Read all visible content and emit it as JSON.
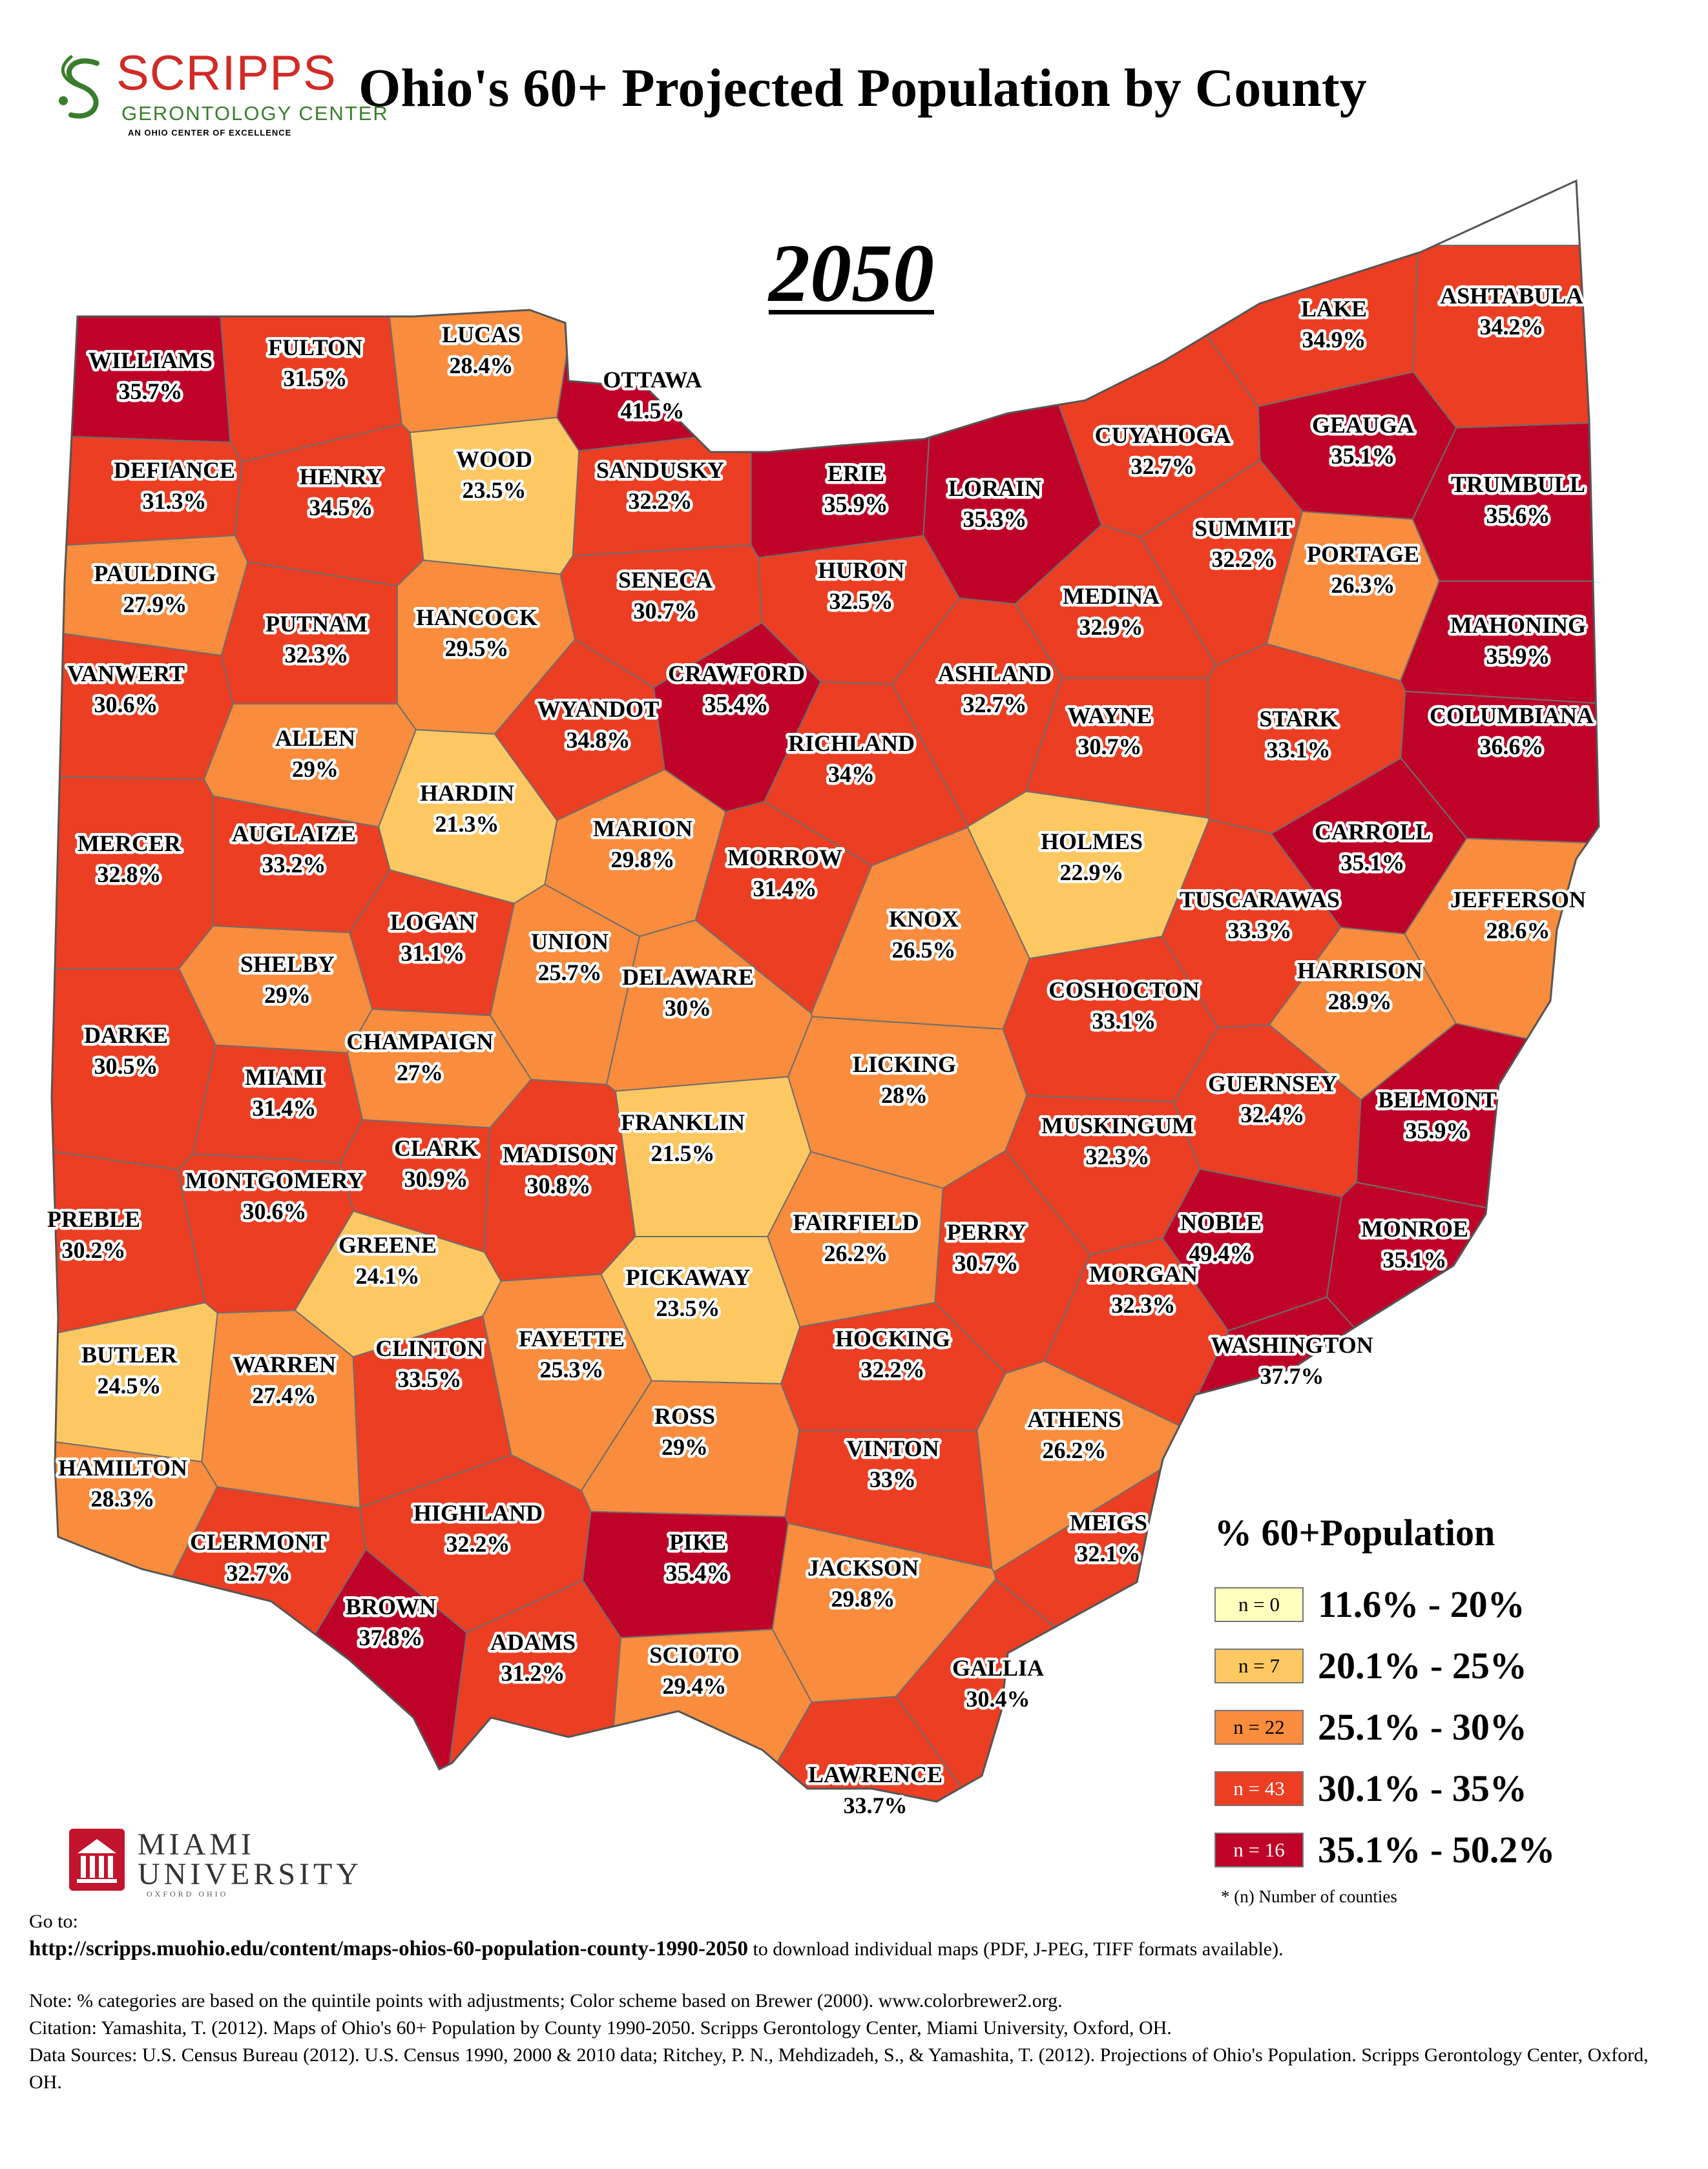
{
  "header": {
    "logo_name": "SCRIPPS",
    "logo_sub": "GERONTOLOGY CENTER",
    "logo_tag": "AN OHIO CENTER OF EXCELLENCE",
    "title": "Ohio's 60+ Projected Population by County",
    "year": "2050"
  },
  "legend": {
    "title": "% 60+Population",
    "items": [
      {
        "count": "n = 0",
        "range": "11.6% - 20%",
        "color": "#ffffbe"
      },
      {
        "count": "n = 7",
        "range": "20.1% - 25%",
        "color": "#fdc862"
      },
      {
        "count": "n = 22",
        "range": "25.1% - 30%",
        "color": "#f98c3d"
      },
      {
        "count": "n = 43",
        "range": "30.1% - 35%",
        "color": "#ec3e23"
      },
      {
        "count": "n = 16",
        "range": "35.1% - 50.2%",
        "color": "#bf0328"
      }
    ],
    "note": "* (n) Number of counties"
  },
  "miami": {
    "name": "MIAMI\nUNIVERSITY",
    "sub": "OXFORD OHIO"
  },
  "footer": {
    "goto": "Go to:",
    "url": "http://scripps.muohio.edu/content/maps-ohios-60-population-county-1990-2050",
    "url_suffix": " to download individual maps (PDF, J-PEG, TIFF formats available).",
    "note": "Note: % categories are based on the quintile points with adjustments; Color scheme based on Brewer (2000). www.colorbrewer2.org.",
    "citation": "Citation: Yamashita, T. (2012). Maps of Ohio's 60+ Population by County 1990-2050. Scripps Gerontology Center, Miami University, Oxford, OH.",
    "sources": "Data Sources: U.S. Census Bureau (2012). U.S. Census 1990, 2000 & 2010 data; Ritchey, P. N., Mehdizadeh, S., & Yamashita, T. (2012). Projections of Ohio's Population. Scripps Gerontology Center, Oxford, OH."
  },
  "counties": [
    {
      "name": "WILLIAMS",
      "value": "35.7%",
      "pct": 35.7
    },
    {
      "name": "FULTON",
      "value": "31.5%",
      "pct": 31.5
    },
    {
      "name": "LUCAS",
      "value": "28.4%",
      "pct": 28.4
    },
    {
      "name": "OTTAWA",
      "value": "41.5%",
      "pct": 41.5
    },
    {
      "name": "WOOD",
      "value": "23.5%",
      "pct": 23.5
    },
    {
      "name": "DEFIANCE",
      "value": "31.3%",
      "pct": 31.3
    },
    {
      "name": "HENRY",
      "value": "34.5%",
      "pct": 34.5
    },
    {
      "name": "SANDUSKY",
      "value": "32.2%",
      "pct": 32.2
    },
    {
      "name": "ERIE",
      "value": "35.9%",
      "pct": 35.9
    },
    {
      "name": "LORAIN",
      "value": "35.3%",
      "pct": 35.3
    },
    {
      "name": "CUYAHOGA",
      "value": "32.7%",
      "pct": 32.7
    },
    {
      "name": "LAKE",
      "value": "34.9%",
      "pct": 34.9
    },
    {
      "name": "GEAUGA",
      "value": "35.1%",
      "pct": 35.1
    },
    {
      "name": "ASHTABULA",
      "value": "34.2%",
      "pct": 34.2
    },
    {
      "name": "TRUMBULL",
      "value": "35.6%",
      "pct": 35.6
    },
    {
      "name": "PAULDING",
      "value": "27.9%",
      "pct": 27.9
    },
    {
      "name": "PUTNAM",
      "value": "32.3%",
      "pct": 32.3
    },
    {
      "name": "HANCOCK",
      "value": "29.5%",
      "pct": 29.5
    },
    {
      "name": "SENECA",
      "value": "30.7%",
      "pct": 30.7
    },
    {
      "name": "HURON",
      "value": "32.5%",
      "pct": 32.5
    },
    {
      "name": "MEDINA",
      "value": "32.9%",
      "pct": 32.9
    },
    {
      "name": "SUMMIT",
      "value": "32.2%",
      "pct": 32.2
    },
    {
      "name": "PORTAGE",
      "value": "26.3%",
      "pct": 26.3
    },
    {
      "name": "MAHONING",
      "value": "35.9%",
      "pct": 35.9
    },
    {
      "name": "VANWERT",
      "value": "30.6%",
      "pct": 30.6
    },
    {
      "name": "ALLEN",
      "value": "29%",
      "pct": 29
    },
    {
      "name": "HARDIN",
      "value": "21.3%",
      "pct": 21.3
    },
    {
      "name": "WYANDOT",
      "value": "34.8%",
      "pct": 34.8
    },
    {
      "name": "CRAWFORD",
      "value": "35.4%",
      "pct": 35.4
    },
    {
      "name": "RICHLAND",
      "value": "34%",
      "pct": 34
    },
    {
      "name": "ASHLAND",
      "value": "32.7%",
      "pct": 32.7
    },
    {
      "name": "WAYNE",
      "value": "30.7%",
      "pct": 30.7
    },
    {
      "name": "STARK",
      "value": "33.1%",
      "pct": 33.1
    },
    {
      "name": "COLUMBIANA",
      "value": "36.6%",
      "pct": 36.6
    },
    {
      "name": "MERCER",
      "value": "32.8%",
      "pct": 32.8
    },
    {
      "name": "AUGLAIZE",
      "value": "33.2%",
      "pct": 33.2
    },
    {
      "name": "MARION",
      "value": "29.8%",
      "pct": 29.8
    },
    {
      "name": "MORROW",
      "value": "31.4%",
      "pct": 31.4
    },
    {
      "name": "HOLMES",
      "value": "22.9%",
      "pct": 22.9
    },
    {
      "name": "CARROLL",
      "value": "35.1%",
      "pct": 35.1
    },
    {
      "name": "TUSCARAWAS",
      "value": "33.3%",
      "pct": 33.3
    },
    {
      "name": "JEFFERSON",
      "value": "28.6%",
      "pct": 28.6
    },
    {
      "name": "SHELBY",
      "value": "29%",
      "pct": 29
    },
    {
      "name": "LOGAN",
      "value": "31.1%",
      "pct": 31.1
    },
    {
      "name": "UNION",
      "value": "25.7%",
      "pct": 25.7
    },
    {
      "name": "DELAWARE",
      "value": "30%",
      "pct": 30
    },
    {
      "name": "KNOX",
      "value": "26.5%",
      "pct": 26.5
    },
    {
      "name": "COSHOCTON",
      "value": "33.1%",
      "pct": 33.1
    },
    {
      "name": "HARRISON",
      "value": "28.9%",
      "pct": 28.9
    },
    {
      "name": "DARKE",
      "value": "30.5%",
      "pct": 30.5
    },
    {
      "name": "MIAMI",
      "value": "31.4%",
      "pct": 31.4
    },
    {
      "name": "CHAMPAIGN",
      "value": "27%",
      "pct": 27
    },
    {
      "name": "LICKING",
      "value": "28%",
      "pct": 28
    },
    {
      "name": "GUERNSEY",
      "value": "32.4%",
      "pct": 32.4
    },
    {
      "name": "BELMONT",
      "value": "35.9%",
      "pct": 35.9
    },
    {
      "name": "CLARK",
      "value": "30.9%",
      "pct": 30.9
    },
    {
      "name": "MADISON",
      "value": "30.8%",
      "pct": 30.8
    },
    {
      "name": "FRANKLIN",
      "value": "21.5%",
      "pct": 21.5
    },
    {
      "name": "MUSKINGUM",
      "value": "32.3%",
      "pct": 32.3
    },
    {
      "name": "MONTGOMERY",
      "value": "30.6%",
      "pct": 30.6
    },
    {
      "name": "PREBLE",
      "value": "30.2%",
      "pct": 30.2
    },
    {
      "name": "GREENE",
      "value": "24.1%",
      "pct": 24.1
    },
    {
      "name": "FAIRFIELD",
      "value": "26.2%",
      "pct": 26.2
    },
    {
      "name": "PERRY",
      "value": "30.7%",
      "pct": 30.7
    },
    {
      "name": "NOBLE",
      "value": "49.4%",
      "pct": 49.4
    },
    {
      "name": "MONROE",
      "value": "35.1%",
      "pct": 35.1
    },
    {
      "name": "PICKAWAY",
      "value": "23.5%",
      "pct": 23.5
    },
    {
      "name": "MORGAN",
      "value": "32.3%",
      "pct": 32.3
    },
    {
      "name": "BUTLER",
      "value": "24.5%",
      "pct": 24.5
    },
    {
      "name": "WARREN",
      "value": "27.4%",
      "pct": 27.4
    },
    {
      "name": "CLINTON",
      "value": "33.5%",
      "pct": 33.5
    },
    {
      "name": "FAYETTE",
      "value": "25.3%",
      "pct": 25.3
    },
    {
      "name": "HOCKING",
      "value": "32.2%",
      "pct": 32.2
    },
    {
      "name": "WASHINGTON",
      "value": "37.7%",
      "pct": 37.7
    },
    {
      "name": "ROSS",
      "value": "29%",
      "pct": 29
    },
    {
      "name": "ATHENS",
      "value": "26.2%",
      "pct": 26.2
    },
    {
      "name": "HAMILTON",
      "value": "28.3%",
      "pct": 28.3
    },
    {
      "name": "VINTON",
      "value": "33%",
      "pct": 33
    },
    {
      "name": "CLERMONT",
      "value": "32.7%",
      "pct": 32.7
    },
    {
      "name": "HIGHLAND",
      "value": "32.2%",
      "pct": 32.2
    },
    {
      "name": "PIKE",
      "value": "35.4%",
      "pct": 35.4
    },
    {
      "name": "MEIGS",
      "value": "32.1%",
      "pct": 32.1
    },
    {
      "name": "JACKSON",
      "value": "29.8%",
      "pct": 29.8
    },
    {
      "name": "BROWN",
      "value": "37.8%",
      "pct": 37.8
    },
    {
      "name": "ADAMS",
      "value": "31.2%",
      "pct": 31.2
    },
    {
      "name": "SCIOTO",
      "value": "29.4%",
      "pct": 29.4
    },
    {
      "name": "GALLIA",
      "value": "30.4%",
      "pct": 30.4
    },
    {
      "name": "LAWRENCE",
      "value": "33.7%",
      "pct": 33.7
    }
  ]
}
